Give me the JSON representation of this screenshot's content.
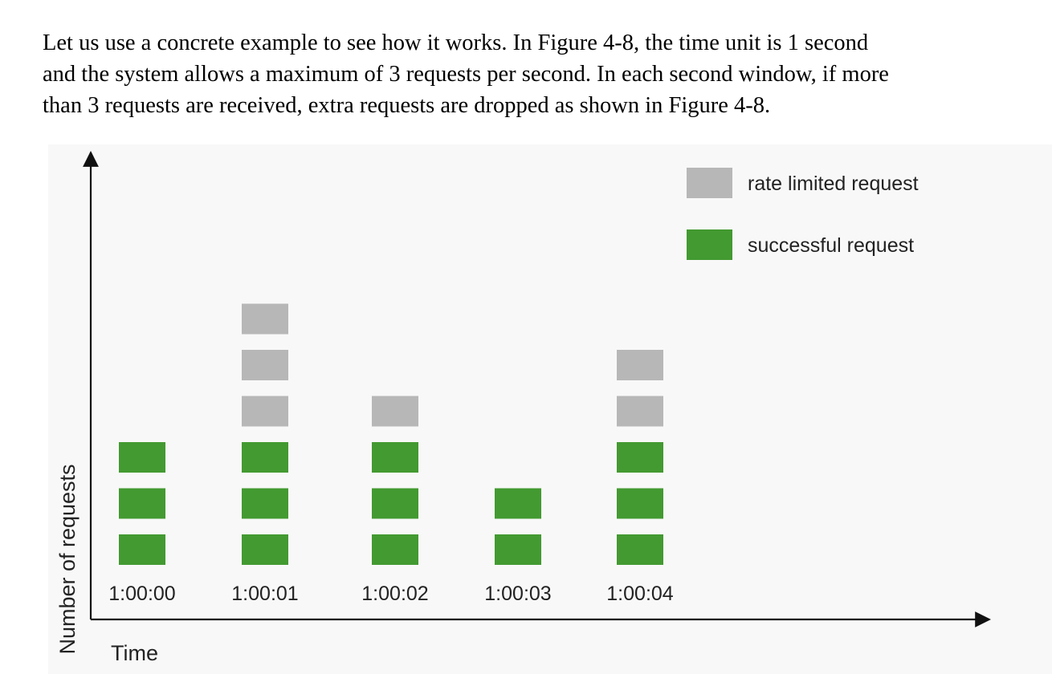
{
  "paragraph": {
    "line1": "Let us use a concrete example to see how it works. In Figure 4-8, the time unit is 1 second",
    "line2": "and the system allows a maximum of 3 requests per second. In each second window, if more",
    "line3": "than 3 requests are received, extra requests are dropped as shown in Figure 4-8."
  },
  "chart_data": {
    "type": "bar",
    "stacked": true,
    "xlabel": "Time",
    "ylabel": "Number of requests",
    "categories": [
      "1:00:00",
      "1:00:01",
      "1:00:02",
      "1:00:03",
      "1:00:04"
    ],
    "series": [
      {
        "name": "successful request",
        "color": "#439a31",
        "values": [
          3,
          3,
          3,
          2,
          3
        ]
      },
      {
        "name": "rate limited request",
        "color": "#b7b7b7",
        "values": [
          0,
          3,
          1,
          0,
          2
        ]
      }
    ],
    "legend": [
      "rate limited request",
      "successful request"
    ],
    "legend_position": "top-right"
  }
}
